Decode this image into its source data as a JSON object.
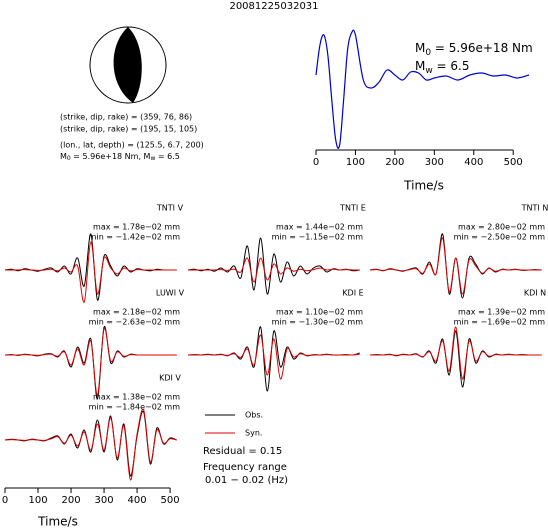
{
  "chart_data": [
    {
      "type": "line",
      "title": "20081225032031",
      "x": [
        0,
        10,
        20,
        30,
        40,
        50,
        60,
        70,
        80,
        90,
        100,
        120,
        140,
        160,
        180,
        200,
        220,
        240,
        260,
        280,
        300,
        330,
        360,
        390,
        420,
        450,
        480,
        510,
        540
      ],
      "values": [
        13,
        43,
        53,
        33,
        -12,
        -52,
        -57,
        -12,
        38,
        55,
        53,
        8,
        0,
        6,
        18,
        13,
        8,
        16,
        15,
        8,
        10,
        12,
        8,
        13,
        15,
        12,
        13,
        10,
        13
      ],
      "color": "#0000cc",
      "xlim": [
        0,
        540
      ],
      "ylim": [
        -60,
        60
      ],
      "xticks": [
        0,
        100,
        200,
        300,
        400,
        500
      ],
      "xlabel": "Time/s",
      "annotations": {
        "m0": {
          "symbol": "M",
          "sub": "0",
          "rest": " = 5.96e+18 Nm"
        },
        "mw": {
          "symbol": "M",
          "sub": "w",
          "rest": " = 6.5"
        }
      },
      "mechanism": [
        "(strike, dip, rake) = (359, 76, 86)",
        "(strike, dip, rake) = (195, 15, 105)",
        "(lon., lat, depth) = (125.5, 6.7, 200)"
      ],
      "moment_line": {
        "m0": {
          "symbol": "M",
          "sub": "0",
          "rest": " = 5.96e+18 Nm, "
        },
        "mw": {
          "symbol": "M",
          "sub": "w",
          "rest": " = 6.5"
        }
      }
    },
    {
      "type": "waveforms",
      "x": [
        0,
        20,
        40,
        60,
        80,
        100,
        120,
        140,
        160,
        180,
        200,
        220,
        240,
        260,
        280,
        300,
        320,
        340,
        360,
        380,
        400,
        420,
        440,
        460,
        480,
        500,
        520
      ],
      "xlim": [
        0,
        530
      ],
      "ylim": [
        -1.2,
        1.2
      ],
      "xticks": [
        0,
        100,
        200,
        300,
        400,
        500
      ],
      "xlabel": "Time/s",
      "legend": [
        "Obs.",
        "Syn."
      ],
      "colors": [
        "#000000",
        "#e00000"
      ],
      "residual": "Residual = 0.15",
      "freq_title": "Frequency range",
      "freq_range": "0.01 − 0.02 (Hz)",
      "panels": [
        {
          "name": "TNTI V",
          "max": "max = 1.78e−02 mm",
          "min": "min = −1.42e−02 mm",
          "obs": [
            0,
            0.02,
            -0.02,
            0.03,
            0,
            -0.03,
            0.02,
            0.05,
            -0.05,
            0.1,
            -0.1,
            0.3,
            -0.4,
            0.9,
            -0.75,
            0.35,
            0.1,
            -0.15,
            0.1,
            -0.05,
            0.03,
            0,
            -0.02,
            0.02,
            0,
            0,
            0
          ],
          "syn": [
            0,
            0,
            0,
            0.01,
            0,
            -0.01,
            0,
            0.02,
            -0.02,
            0.05,
            -0.05,
            0.1,
            -0.8,
            0.7,
            -0.6,
            0.3,
            0.05,
            -0.1,
            0.05,
            -0.02,
            0.01,
            0,
            0,
            0,
            0,
            0,
            0
          ]
        },
        {
          "name": "TNTI E",
          "max": "max = 1.44e−02 mm",
          "min": "min = −1.15e−02 mm",
          "obs": [
            0,
            0.02,
            -0.02,
            0.02,
            -0.03,
            0.05,
            -0.05,
            0.1,
            -0.2,
            0.6,
            -0.5,
            0.8,
            -0.6,
            0.4,
            -0.3,
            0.2,
            -0.15,
            0.1,
            -0.1,
            0.05,
            0.1,
            -0.05,
            0.03,
            0,
            0.02,
            -0.02,
            0
          ],
          "syn": [
            0,
            0,
            0,
            0,
            0,
            0.01,
            -0.01,
            0.02,
            -0.05,
            0.3,
            -0.3,
            0.3,
            -0.25,
            0.15,
            -0.1,
            0.05,
            -0.03,
            0.02,
            -0.02,
            0.01,
            0.05,
            0,
            0.02,
            0,
            0.01,
            0,
            0
          ]
        },
        {
          "name": "TNTI N",
          "max": "max = 2.80e−02 mm",
          "min": "min = −2.50e−02 mm",
          "obs": [
            0,
            0.02,
            -0.02,
            0.03,
            0,
            -0.03,
            0.02,
            0.05,
            -0.1,
            0.2,
            -0.1,
            0.9,
            -0.6,
            0.3,
            -0.7,
            0.3,
            0.15,
            -0.1,
            0.05,
            -0.05,
            0.02,
            0,
            0.02,
            -0.01,
            0,
            0.01,
            0
          ],
          "syn": [
            0,
            0.01,
            -0.01,
            0.02,
            0,
            -0.02,
            0.01,
            0.03,
            -0.08,
            0.15,
            -0.1,
            0.8,
            -0.55,
            0.3,
            -0.6,
            0.25,
            0.1,
            -0.08,
            0.04,
            -0.03,
            0.01,
            0,
            0.01,
            0,
            0,
            0,
            0
          ]
        },
        {
          "name": "LUWI V",
          "max": "max = 2.18e−02 mm",
          "min": "min = −2.63e−02 mm",
          "obs": [
            0,
            0.01,
            -0.01,
            0.02,
            0,
            -0.02,
            0.02,
            0.03,
            -0.05,
            0.1,
            -0.3,
            0.2,
            -0.2,
            0.4,
            -1.1,
            0.7,
            -0.2,
            0.1,
            -0.05,
            0.02,
            0,
            0,
            0,
            0,
            0,
            0,
            0
          ],
          "syn": [
            0,
            0,
            0,
            0.01,
            0,
            -0.01,
            0.01,
            0.02,
            -0.03,
            0.08,
            -0.25,
            0.15,
            -0.25,
            0.35,
            -1.0,
            0.65,
            -0.15,
            0.08,
            -0.03,
            0.01,
            0,
            0,
            0,
            0,
            0,
            0,
            0
          ]
        },
        {
          "name": "KDI E",
          "max": "max = 1.10e−02 mm",
          "min": "min = −1.30e−02 mm",
          "obs": [
            0,
            0.01,
            0,
            0.02,
            0,
            0.02,
            -0.02,
            0.05,
            -0.1,
            0.2,
            -0.3,
            0.7,
            -0.9,
            0.6,
            -0.3,
            0.2,
            -0.1,
            0.05,
            -0.02,
            0.01,
            0,
            0.02,
            0,
            0,
            0.01,
            0,
            0.05
          ],
          "syn": [
            0,
            0,
            0,
            0.01,
            0,
            0.01,
            -0.01,
            0.03,
            -0.06,
            0.15,
            -0.25,
            0.5,
            -0.5,
            0.4,
            -0.6,
            0.15,
            -0.05,
            0.03,
            -0.01,
            0,
            0,
            0.01,
            0,
            0,
            0,
            0,
            0.02
          ]
        },
        {
          "name": "KDI N",
          "max": "max = 1.39e−02 mm",
          "min": "min = −1.69e−02 mm",
          "obs": [
            0,
            0.01,
            0,
            0.02,
            -0.02,
            0.02,
            0,
            0.03,
            -0.05,
            0.1,
            -0.2,
            0.4,
            -0.5,
            0.6,
            -0.8,
            0.4,
            -0.2,
            0.1,
            -0.05,
            0.02,
            0,
            0.02,
            0,
            0.01,
            0,
            0,
            0
          ],
          "syn": [
            0,
            0,
            0,
            0.01,
            -0.01,
            0.01,
            0,
            0.02,
            -0.04,
            0.08,
            -0.15,
            0.35,
            -0.4,
            0.7,
            -0.6,
            0.35,
            -0.15,
            0.08,
            -0.03,
            0.01,
            0,
            0.01,
            0,
            0,
            0,
            0,
            0
          ]
        },
        {
          "name": "KDI V",
          "max": "max = 1.38e−02 mm",
          "min": "min = −1.84e−02 mm",
          "obs": [
            0,
            0.02,
            0,
            -0.02,
            0.02,
            0,
            -0.02,
            0.05,
            0.1,
            -0.1,
            0.15,
            -0.2,
            0.25,
            -0.3,
            0.5,
            -0.3,
            0.6,
            -0.5,
            0.4,
            -0.9,
            0.1,
            0.7,
            -0.6,
            0.3,
            -0.1,
            0.05,
            0
          ],
          "syn": [
            0,
            0.01,
            0,
            -0.01,
            0.01,
            0,
            -0.01,
            0.03,
            0.08,
            -0.08,
            0.12,
            -0.15,
            0.2,
            -0.25,
            0.4,
            -0.25,
            0.55,
            -0.45,
            0.35,
            -1.0,
            0.15,
            0.75,
            -0.55,
            0.25,
            -0.08,
            0.03,
            0
          ]
        }
      ]
    }
  ]
}
